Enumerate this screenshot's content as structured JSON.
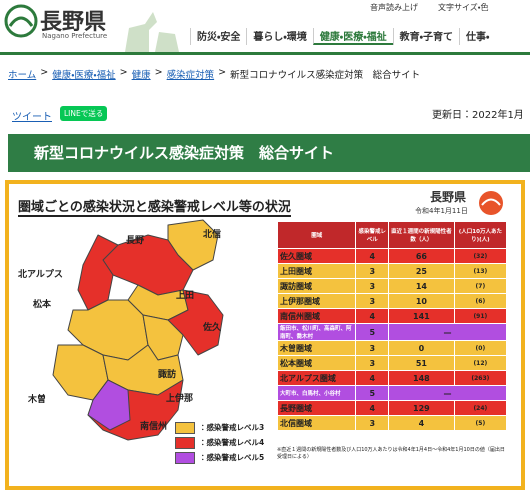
{
  "header": {
    "logo": "長野県",
    "logo_sub": "Nagano Prefecture",
    "tools": [
      "音声読み上げ",
      "文字サイズ・色"
    ],
    "nav": [
      "防災・安全",
      "暮らし・環境",
      "健康・医療・福祉",
      "教育・子育て",
      "仕事・"
    ]
  },
  "breadcrumb": {
    "separator": ">",
    "items": [
      "ホーム",
      "健康・医療・福祉",
      "健康",
      "感染症対策",
      "新型コロナウイルス感染症対策　総合サイト"
    ]
  },
  "share": {
    "tweet": "ツイート",
    "line": "LINEで送る"
  },
  "updated": "更新日：2022年1月",
  "page_title": "新型コロナウイルス感染症対策　総合サイト",
  "figure": {
    "title": "圏域ごとの感染状況と感染警戒レベル等の状況",
    "brand": "長野県",
    "date": "令和4年1月11日",
    "map_labels": [
      "長野",
      "北信",
      "北アルプス",
      "上田",
      "佐久",
      "松本",
      "諏訪",
      "木曽",
      "上伊那",
      "南信州"
    ],
    "legend": [
      {
        "label": "：感染警戒レベル3",
        "color": "#f4c23e"
      },
      {
        "label": "：感染警戒レベル4",
        "color": "#e5302a"
      },
      {
        "label": "：感染警戒レベル5",
        "color": "#b14ee0"
      }
    ],
    "table": {
      "headers": [
        "圏域",
        "感染警戒レベル",
        "直近１週間の新規陽性者数（人）",
        "(人口10万人あたり)(人)"
      ],
      "level_colors": {
        "3": "#f4c23e",
        "4": "#e5302a",
        "5": "#b14ee0"
      },
      "rows": [
        {
          "area": "佐久圏域",
          "level": "4",
          "count": "66",
          "per100k": "(32)"
        },
        {
          "area": "上田圏域",
          "level": "3",
          "count": "25",
          "per100k": "(13)"
        },
        {
          "area": "諏訪圏域",
          "level": "3",
          "count": "14",
          "per100k": "(7)"
        },
        {
          "area": "上伊那圏域",
          "level": "3",
          "count": "10",
          "per100k": "(6)"
        },
        {
          "area": "南信州圏域",
          "level": "4",
          "count": "141",
          "per100k": "(91)"
        },
        {
          "area": "飯田市、松川町、高森町、阿南町、喬木村",
          "level": "5",
          "count": "—"
        },
        {
          "area": "木曽圏域",
          "level": "3",
          "count": "0",
          "per100k": "(0)"
        },
        {
          "area": "松本圏域",
          "level": "3",
          "count": "51",
          "per100k": "(12)"
        },
        {
          "area": "北アルプス圏域",
          "level": "4",
          "count": "148",
          "per100k": "(263)"
        },
        {
          "area": "大町市、白馬村、小谷村",
          "level": "5",
          "count": "—"
        },
        {
          "area": "長野圏域",
          "level": "4",
          "count": "129",
          "per100k": "(24)"
        },
        {
          "area": "北信圏域",
          "level": "3",
          "count": "4",
          "per100k": "(5)"
        }
      ]
    },
    "note": "※直近１週間の新規陽性者数及び人口10万人あたりは令和4年1月4日～令和4年1月10日の値（届出日受理日による）"
  }
}
